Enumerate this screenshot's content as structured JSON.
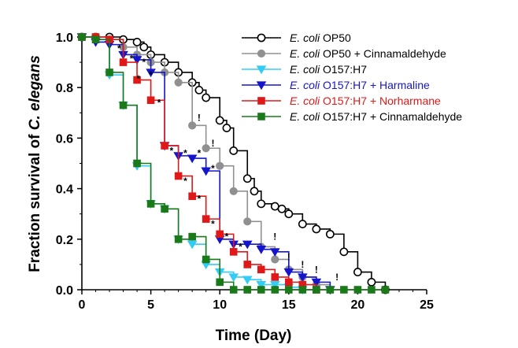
{
  "chart_data": {
    "type": "line",
    "xlabel": "Time (Day)",
    "ylabel_prefix": "Fraction survival of ",
    "ylabel_italic": "C. elegans",
    "xlim": [
      0,
      25
    ],
    "ylim": [
      0.0,
      1.0
    ],
    "xticks": [
      "0",
      "5",
      "10",
      "15",
      "20",
      "25"
    ],
    "yticks": [
      "0.0",
      "0.2",
      "0.4",
      "0.6",
      "0.8",
      "1.0"
    ],
    "grid": false,
    "legend_position": "top-right",
    "series": [
      {
        "name_italic": "E. coli",
        "name_rest": " OP50",
        "color": "#000000",
        "marker": "open-circle",
        "points": [
          [
            0,
            1.0
          ],
          [
            1,
            1.0
          ],
          [
            2,
            1.0
          ],
          [
            3,
            0.99
          ],
          [
            4,
            0.98
          ],
          [
            4.5,
            0.96
          ],
          [
            5,
            0.93
          ],
          [
            6,
            0.9
          ],
          [
            7,
            0.86
          ],
          [
            8,
            0.82
          ],
          [
            8.5,
            0.79
          ],
          [
            9,
            0.76
          ],
          [
            10,
            0.67
          ],
          [
            10.5,
            0.64
          ],
          [
            11,
            0.55
          ],
          [
            12,
            0.44
          ],
          [
            12.5,
            0.39
          ],
          [
            13,
            0.34
          ],
          [
            14,
            0.33
          ],
          [
            14.5,
            0.32
          ],
          [
            15,
            0.3
          ],
          [
            16,
            0.26
          ],
          [
            17,
            0.24
          ],
          [
            18,
            0.22
          ],
          [
            19,
            0.15
          ],
          [
            20,
            0.07
          ],
          [
            21,
            0.03
          ],
          [
            22,
            0.0
          ]
        ]
      },
      {
        "name_italic": "E. coli",
        "name_rest": " OP50 + Cinnamaldehyde",
        "color": "#909090",
        "marker": "filled-circle",
        "points": [
          [
            0,
            1.0
          ],
          [
            1,
            1.0
          ],
          [
            2,
            0.99
          ],
          [
            3,
            0.96
          ],
          [
            4,
            0.93
          ],
          [
            5,
            0.9
          ],
          [
            6,
            0.86
          ],
          [
            7,
            0.82
          ],
          [
            8,
            0.65
          ],
          [
            9,
            0.56
          ],
          [
            10,
            0.49
          ],
          [
            11,
            0.39
          ],
          [
            12,
            0.27
          ],
          [
            13,
            0.17
          ],
          [
            14,
            0.12
          ],
          [
            15,
            0.08
          ],
          [
            16,
            0.05
          ],
          [
            17,
            0.02
          ],
          [
            18,
            0.0
          ]
        ]
      },
      {
        "name_italic": "E. coli",
        "name_rest": " O157:H7",
        "color": "#33ccf5",
        "marker": "filled-triangle-down",
        "points": [
          [
            0,
            1.0
          ],
          [
            1,
            0.99
          ],
          [
            2,
            0.85
          ],
          [
            3,
            0.73
          ],
          [
            4,
            0.49
          ],
          [
            5,
            0.34
          ],
          [
            6,
            0.32
          ],
          [
            7,
            0.2
          ],
          [
            8,
            0.18
          ],
          [
            9,
            0.1
          ],
          [
            10,
            0.07
          ],
          [
            11,
            0.05
          ],
          [
            12,
            0.04
          ],
          [
            13,
            0.02
          ],
          [
            14,
            0.02
          ],
          [
            15,
            0.01
          ],
          [
            16,
            0.0
          ]
        ]
      },
      {
        "name_italic": "E. coli",
        "name_rest": " O157:H7 + Harmaline",
        "color": "#1515cc",
        "marker": "filled-triangle-down",
        "points": [
          [
            0,
            1.0
          ],
          [
            1,
            0.98
          ],
          [
            2,
            0.97
          ],
          [
            3,
            0.93
          ],
          [
            4,
            0.91
          ],
          [
            5,
            0.86
          ],
          [
            6,
            0.57
          ],
          [
            7,
            0.53
          ],
          [
            8,
            0.52
          ],
          [
            9,
            0.47
          ],
          [
            10,
            0.2
          ],
          [
            11,
            0.18
          ],
          [
            12,
            0.18
          ],
          [
            13,
            0.16
          ],
          [
            14,
            0.15
          ],
          [
            15,
            0.07
          ],
          [
            16,
            0.05
          ],
          [
            17,
            0.03
          ],
          [
            18,
            0.0
          ]
        ]
      },
      {
        "name_italic": "E. coli",
        "name_rest": " O157:H7 + Norharmane",
        "color": "#e01818",
        "marker": "filled-square",
        "points": [
          [
            0,
            1.0
          ],
          [
            1,
            1.0
          ],
          [
            2,
            0.99
          ],
          [
            3,
            0.9
          ],
          [
            4,
            0.83
          ],
          [
            5,
            0.75
          ],
          [
            6,
            0.57
          ],
          [
            7,
            0.45
          ],
          [
            8,
            0.37
          ],
          [
            9,
            0.28
          ],
          [
            10,
            0.22
          ],
          [
            11,
            0.15
          ],
          [
            12,
            0.1
          ],
          [
            13,
            0.08
          ],
          [
            14,
            0.05
          ],
          [
            15,
            0.03
          ],
          [
            16,
            0.02
          ],
          [
            17,
            0.0
          ]
        ]
      },
      {
        "name_italic": "E. coli",
        "name_rest": " O157:H7 + Cinnamaldehyde",
        "color": "#1a7a1a",
        "marker": "filled-square",
        "points": [
          [
            0,
            1.0
          ],
          [
            1,
            0.99
          ],
          [
            2,
            0.86
          ],
          [
            3,
            0.73
          ],
          [
            4,
            0.5
          ],
          [
            5,
            0.34
          ],
          [
            6,
            0.32
          ],
          [
            7,
            0.2
          ],
          [
            8,
            0.21
          ],
          [
            9,
            0.12
          ],
          [
            10,
            0.03
          ],
          [
            11,
            0.0
          ],
          [
            12,
            0.0
          ],
          [
            13,
            0.0
          ],
          [
            14,
            0.0
          ],
          [
            15,
            0.0
          ],
          [
            16,
            0.0
          ],
          [
            17,
            0.0
          ],
          [
            18,
            0.0
          ],
          [
            19,
            0.0
          ],
          [
            20,
            0.0
          ],
          [
            21,
            0.0
          ],
          [
            22,
            0.0
          ]
        ]
      }
    ],
    "annotations": [
      {
        "text": "*",
        "x": 2.7,
        "y": 0.955
      },
      {
        "text": "*",
        "x": 3.6,
        "y": 0.915
      },
      {
        "text": "*",
        "x": 4.5,
        "y": 0.9
      },
      {
        "text": "*",
        "x": 4.1,
        "y": 0.835
      },
      {
        "text": "*",
        "x": 5.0,
        "y": 0.85
      },
      {
        "text": "*",
        "x": 5.6,
        "y": 0.74
      },
      {
        "text": "*",
        "x": 6.5,
        "y": 0.55
      },
      {
        "text": "*",
        "x": 7.5,
        "y": 0.54
      },
      {
        "text": "*",
        "x": 8.5,
        "y": 0.54
      },
      {
        "text": "*",
        "x": 9.5,
        "y": 0.48
      },
      {
        "text": "*",
        "x": 7.5,
        "y": 0.43
      },
      {
        "text": "*",
        "x": 8.5,
        "y": 0.36
      },
      {
        "text": "*",
        "x": 9.5,
        "y": 0.26
      },
      {
        "text": "*",
        "x": 10.5,
        "y": 0.21
      },
      {
        "text": "*",
        "x": 11.5,
        "y": 0.17
      },
      {
        "text": "!",
        "x": 8.5,
        "y": 0.68
      },
      {
        "text": "!",
        "x": 9.5,
        "y": 0.58
      },
      {
        "text": "!",
        "x": 14.0,
        "y": 0.21
      },
      {
        "text": "!",
        "x": 15.0,
        "y": 0.13
      },
      {
        "text": "!",
        "x": 16.0,
        "y": 0.1
      },
      {
        "text": "!",
        "x": 17.0,
        "y": 0.08
      },
      {
        "text": "!",
        "x": 18.5,
        "y": 0.05
      }
    ]
  }
}
